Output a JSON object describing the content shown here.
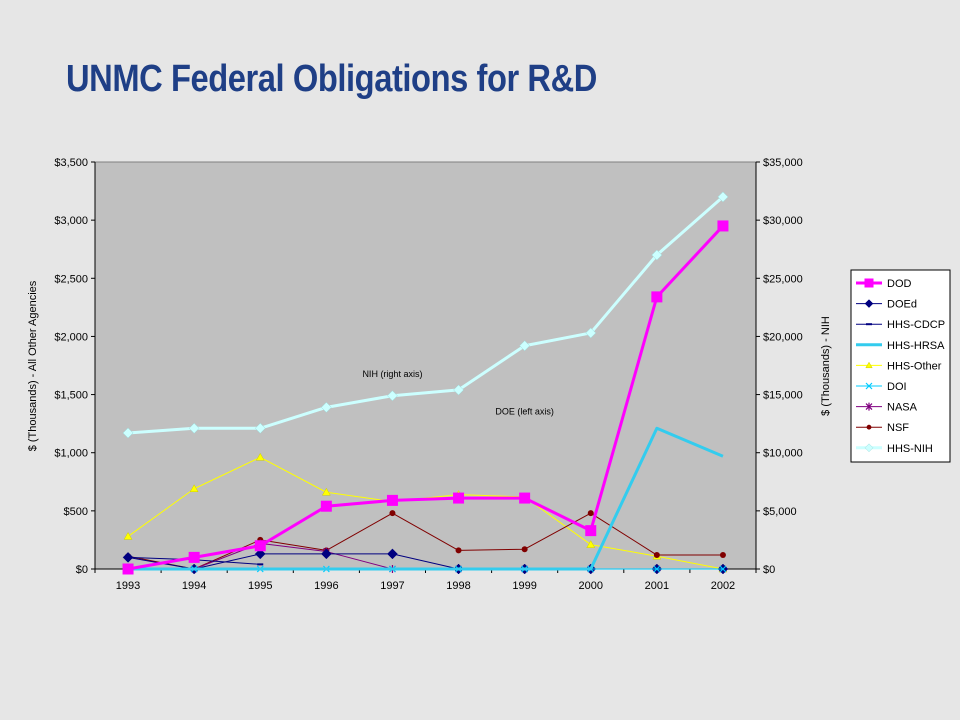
{
  "title": "UNMC Federal Obligations for R&D",
  "chart_data": {
    "type": "line",
    "x": [
      "1993",
      "1994",
      "1995",
      "1996",
      "1997",
      "1998",
      "1999",
      "2000",
      "2001",
      "2002"
    ],
    "ylabel_left": "$ (Thousands) - All Other Agencies",
    "ylabel_right": "$ (Thousands) - NIH",
    "ylim_left": [
      0,
      3500
    ],
    "ylim_right": [
      0,
      35000
    ],
    "yticks_left": [
      "$0",
      "$500",
      "$1,000",
      "$1,500",
      "$2,000",
      "$2,500",
      "$3,000",
      "$3,500"
    ],
    "yticks_right": [
      "$0",
      "$5,000",
      "$10,000",
      "$15,000",
      "$20,000",
      "$25,000",
      "$30,000",
      "$35,000"
    ],
    "grid": false,
    "plot_background": "#c0c0c0",
    "legend_position": "right",
    "annotations": [
      {
        "text": "NIH (right axis)",
        "x": "1997",
        "y_right": 16500
      },
      {
        "text": "DOE (left axis)",
        "x": "1999",
        "y_left": 1330
      }
    ],
    "series": [
      {
        "name": "DOD",
        "axis": "left",
        "color": "#ff00ff",
        "marker": "square",
        "width": 3,
        "values": [
          0,
          100,
          200,
          540,
          590,
          610,
          610,
          330,
          2340,
          2950
        ]
      },
      {
        "name": "DOEd",
        "axis": "left",
        "color": "#000080",
        "marker": "diamond",
        "width": 1,
        "values": [
          100,
          0,
          130,
          130,
          130,
          0,
          0,
          0,
          0,
          0
        ]
      },
      {
        "name": "HHS-CDCP",
        "axis": "left",
        "color": "#000080",
        "marker": "dash",
        "width": 1,
        "values": [
          100,
          80,
          40,
          null,
          null,
          null,
          null,
          null,
          null,
          null
        ]
      },
      {
        "name": "HHS-HRSA",
        "axis": "left",
        "color": "#33ccee",
        "marker": "none",
        "width": 3,
        "values": [
          0,
          0,
          0,
          0,
          0,
          0,
          0,
          0,
          1210,
          970
        ]
      },
      {
        "name": "HHS-Other",
        "axis": "left",
        "color": "#ffff00",
        "marker": "triangle",
        "width": 1,
        "values": [
          280,
          690,
          960,
          660,
          580,
          640,
          620,
          210,
          110,
          0
        ]
      },
      {
        "name": "DOI",
        "axis": "left",
        "color": "#00ccff",
        "marker": "x",
        "width": 1,
        "values": [
          0,
          0,
          0,
          0,
          0,
          0,
          0,
          0,
          0,
          0
        ]
      },
      {
        "name": "NASA",
        "axis": "left",
        "color": "#800080",
        "marker": "star",
        "width": 1,
        "values": [
          0,
          0,
          220,
          150,
          0,
          0,
          0,
          0,
          0,
          0
        ]
      },
      {
        "name": "NSF",
        "axis": "left",
        "color": "#800000",
        "marker": "circle",
        "width": 1,
        "values": [
          110,
          0,
          250,
          160,
          480,
          160,
          170,
          480,
          120,
          120
        ]
      },
      {
        "name": "HHS-NIH",
        "axis": "right",
        "color": "#ccffff",
        "marker": "diamond",
        "width": 3,
        "values": [
          11700,
          12100,
          12100,
          13900,
          14900,
          15400,
          19200,
          20300,
          27000,
          32000
        ]
      }
    ]
  }
}
